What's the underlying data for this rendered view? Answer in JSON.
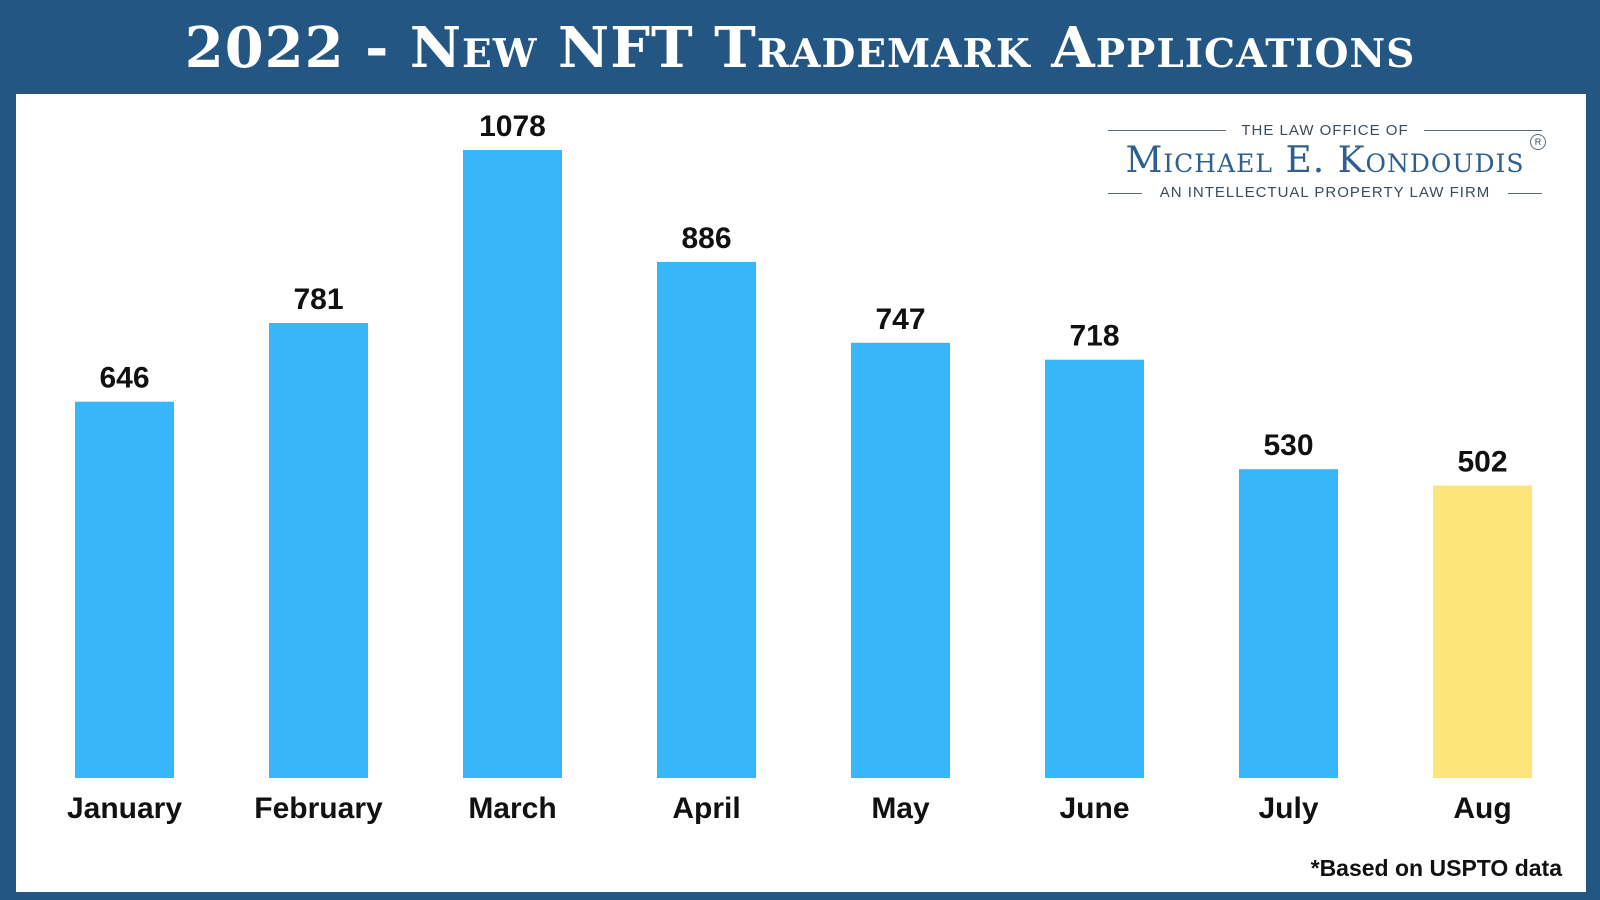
{
  "header": {
    "title": "2022 - New NFT Trademark Applications"
  },
  "logo": {
    "top_line": "THE LAW OFFICE OF",
    "name": "Michael E. Kondoudis",
    "subtitle": "AN INTELLECTUAL PROPERTY LAW FIRM",
    "registered_mark": "R"
  },
  "footnote": "*Based on USPTO data",
  "colors": {
    "header_bg": "#235682",
    "bar_default": "#38b6fc",
    "bar_highlight": "#fee57a",
    "text": "#111111"
  },
  "chart_data": {
    "type": "bar",
    "title": "2022 - New NFT Trademark Applications",
    "xlabel": "",
    "ylabel": "",
    "grid": false,
    "legend": "none",
    "categories": [
      "January",
      "February",
      "March",
      "April",
      "May",
      "June",
      "July",
      "Aug"
    ],
    "values": [
      646,
      781,
      1078,
      886,
      747,
      718,
      530,
      502
    ],
    "highlighted_category": "Aug",
    "data_labels": [
      "646",
      "781",
      "1078",
      "886",
      "747",
      "718",
      "530",
      "502"
    ]
  }
}
